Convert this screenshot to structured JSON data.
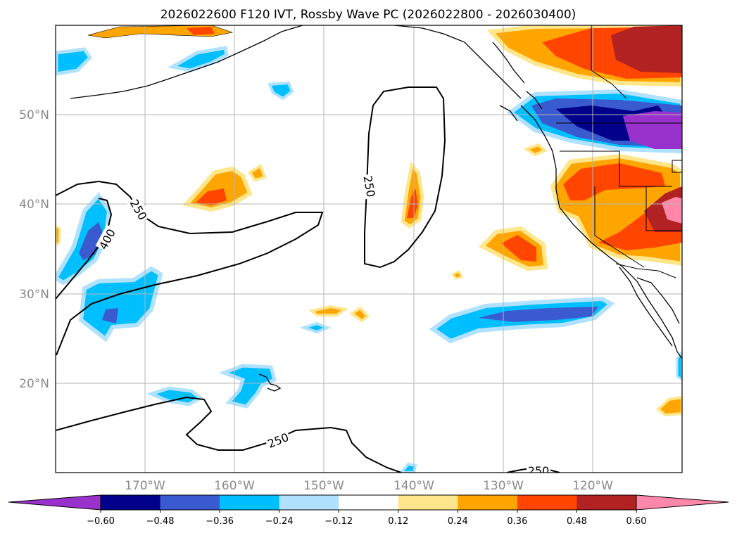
{
  "title": "2026022600 F120 IVT, Rossby Wave PC (2026022800 - 2026030400)",
  "map": {
    "lat_labels": [
      "50°N",
      "40°N",
      "30°N",
      "20°N"
    ],
    "lon_labels": [
      "170°W",
      "160°W",
      "150°W",
      "140°W",
      "130°W",
      "120°W"
    ],
    "contour_labels": [
      "250",
      "400",
      "250",
      "250",
      "250"
    ]
  },
  "colorbar": {
    "colors": [
      "#9932cc",
      "#00008b",
      "#3a5bd0",
      "#00bfff",
      "#b0e2ff",
      "#ffffff",
      "#ffe68a",
      "#ffa500",
      "#ff4500",
      "#b22222",
      "#ff88aa"
    ],
    "tick_labels": [
      "−0.60",
      "−0.48",
      "−0.36",
      "−0.24",
      "−0.12",
      "0.12",
      "0.24",
      "0.36",
      "0.48",
      "0.60"
    ]
  }
}
